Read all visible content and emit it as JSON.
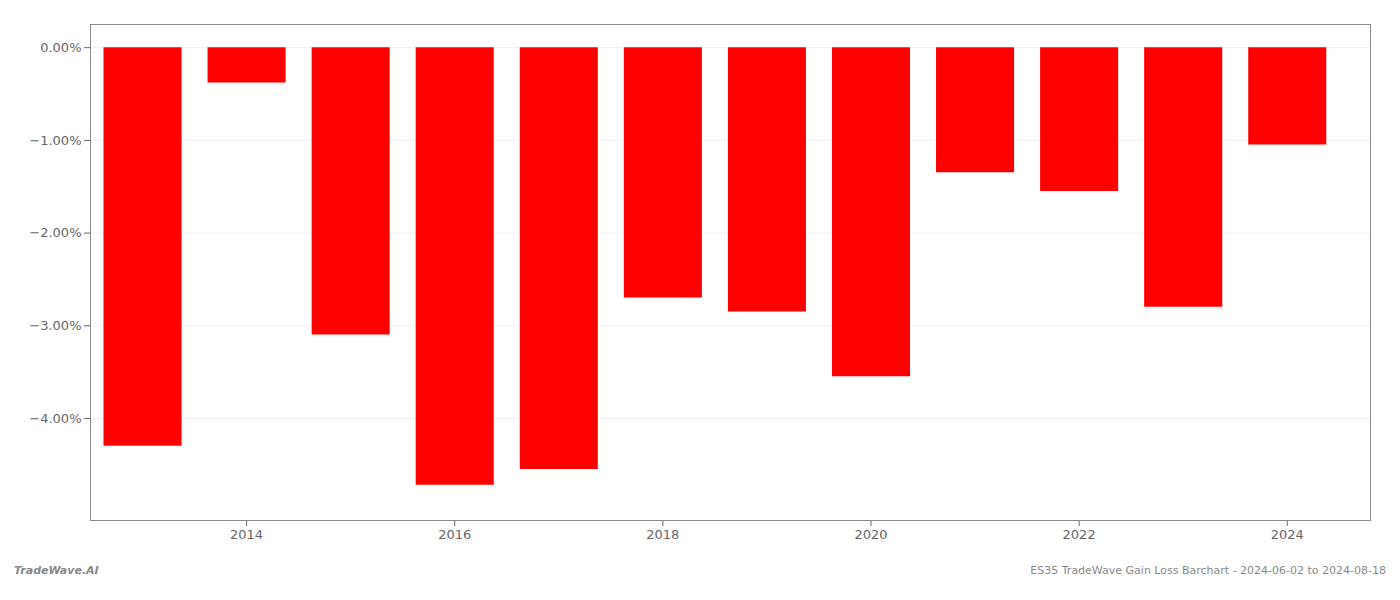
{
  "chart_data": {
    "type": "bar",
    "x": [
      2013,
      2014,
      2015,
      2016,
      2017,
      2018,
      2019,
      2020,
      2021,
      2022,
      2023,
      2024
    ],
    "values": [
      -4.3,
      -0.38,
      -3.1,
      -4.72,
      -4.55,
      -2.7,
      -2.85,
      -3.55,
      -1.35,
      -1.55,
      -2.8,
      -1.05
    ],
    "color": "#ff0000",
    "xlim": [
      2012.5,
      2024.8
    ],
    "xticks": [
      2014,
      2016,
      2018,
      2020,
      2022,
      2024
    ],
    "ylim": [
      -5.1,
      0.25
    ],
    "yticks": [
      {
        "value": 0.0,
        "label": "0.00%"
      },
      {
        "value": -1.0,
        "label": "−1.00%"
      },
      {
        "value": -2.0,
        "label": "−2.00%"
      },
      {
        "value": -3.0,
        "label": "−3.00%"
      },
      {
        "value": -4.0,
        "label": "−4.00%"
      }
    ],
    "grid": true,
    "annotations": [
      "TradeWave.AI",
      "ES35 TradeWave Gain Loss Barchart - 2024-06-02 to 2024-08-18"
    ]
  }
}
